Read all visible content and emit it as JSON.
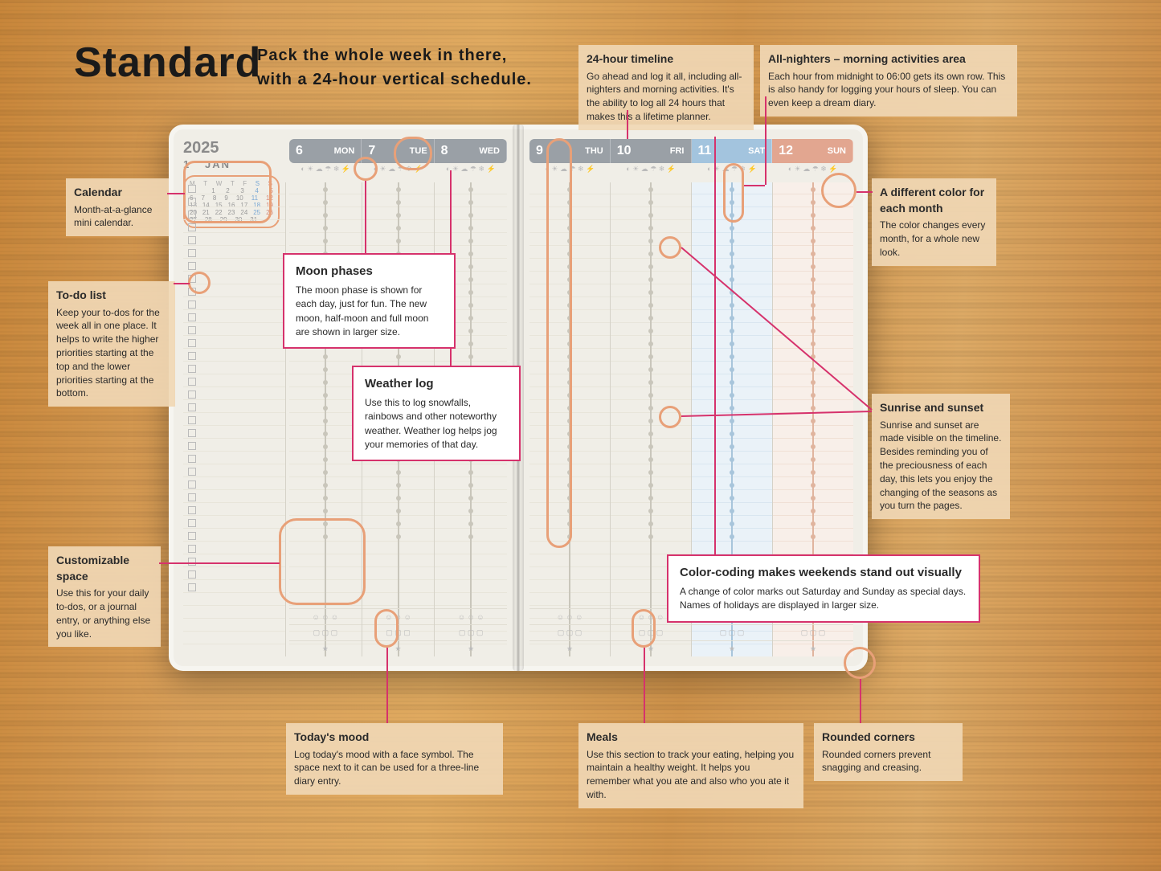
{
  "headline": "Standard",
  "tagline_l1": "Pack the whole week in there,",
  "tagline_l2": "with a 24-hour vertical schedule.",
  "year": "2025",
  "month_num": "1",
  "month_abbr": "JAN",
  "minical_head": [
    "M",
    "T",
    "W",
    "T",
    "F",
    "S",
    "S"
  ],
  "minical_rows": [
    [
      "",
      "",
      "1",
      "2",
      "3",
      "4",
      "5"
    ],
    [
      "6",
      "7",
      "8",
      "9",
      "10",
      "11",
      "12"
    ],
    [
      "13",
      "14",
      "15",
      "16",
      "17",
      "18",
      "19"
    ],
    [
      "20",
      "21",
      "22",
      "23",
      "24",
      "25",
      "26"
    ],
    [
      "27",
      "28",
      "29",
      "30",
      "31",
      "",
      ""
    ]
  ],
  "days_left": [
    {
      "n": "6",
      "d": "MON"
    },
    {
      "n": "7",
      "d": "TUE"
    },
    {
      "n": "8",
      "d": "WED"
    }
  ],
  "days_right": [
    {
      "n": "9",
      "d": "THU"
    },
    {
      "n": "10",
      "d": "FRI"
    },
    {
      "n": "11",
      "d": "SAT"
    },
    {
      "n": "12",
      "d": "SUN"
    }
  ],
  "weather_glyphs": "◐ ☀ ☁ ☂ ❄ ⚡",
  "callouts": {
    "calendar": {
      "title": "Calendar",
      "body": "Month-at-a-glance mini calendar."
    },
    "todo": {
      "title": "To-do list",
      "body": "Keep your to-dos for the week all in one place. It helps to write the higher priorities starting at the top and the lower priorities starting at the bottom."
    },
    "custom": {
      "title": "Customizable space",
      "body": "Use this for your daily to-dos, or a journal entry, or anything else you like."
    },
    "timeline": {
      "title": "24-hour timeline",
      "body": "Go ahead and log it all, including all-nighters and morning activities. It's the ability to log all 24 hours that makes this a lifetime planner."
    },
    "allnight": {
      "title": "All-nighters – morning activities area",
      "body": "Each hour from midnight to 06:00 gets its own row. This is also handy for logging your hours of sleep. You can even keep a dream diary."
    },
    "monthcolor": {
      "title": "A different color for each month",
      "body": "The color changes every month, for a whole new look."
    },
    "sunrise": {
      "title": "Sunrise and sunset",
      "body": "Sunrise and sunset are made visible on the timeline. Besides reminding you of the preciousness of each day, this lets you enjoy the changing of the seasons as you turn the pages."
    },
    "mood": {
      "title": "Today's mood",
      "body": "Log today's mood with a face symbol. The space next to it can be used for a three-line diary entry."
    },
    "meals": {
      "title": "Meals",
      "body": "Use this section to track your eating, helping you maintain a healthy weight. It helps you remember what you ate and also who you ate it with."
    },
    "rounded": {
      "title": "Rounded corners",
      "body": "Rounded corners prevent snagging and creasing."
    }
  },
  "notes": {
    "moon": {
      "title": "Moon phases",
      "body": "The moon phase is shown for each day, just for fun. The new moon, half-moon and full moon are shown in larger size."
    },
    "weather": {
      "title": "Weather log",
      "body": "Use this to log snowfalls, rainbows and other noteworthy weather. Weather log helps jog your memories of that day."
    },
    "weekend": {
      "title": "Color-coding makes weekends stand out visually",
      "body": "A change of color marks out Saturday and Sunday as special days. Names of holidays are displayed in larger size."
    }
  },
  "colors": {
    "orange_ring": "#e8a078",
    "magenta": "#d6326c",
    "gray_header": "#9aa0a6",
    "sat": "#a3c4de",
    "sun": "#e2a690"
  }
}
